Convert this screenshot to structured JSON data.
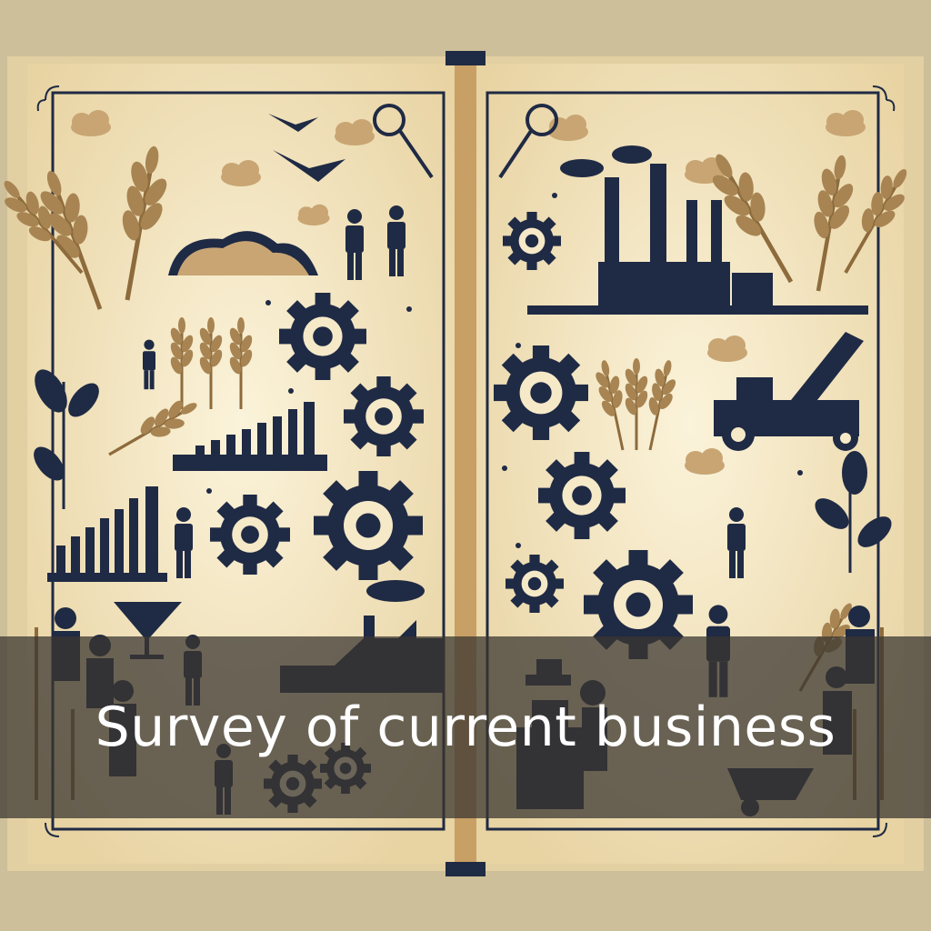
{
  "title": "Survey of current business",
  "colors": {
    "paper": "#f3e6c4",
    "ink": "#1f2a44",
    "wheat": "#a78452",
    "banner": "#3a3630",
    "text": "#ffffff"
  },
  "icons": [
    "wheat-icon",
    "gear-icon",
    "factory-icon",
    "tractor-icon",
    "person-icon",
    "bird-icon",
    "cloud-icon",
    "bar-chart-icon",
    "magnifier-icon",
    "cocktail-glass-icon",
    "leaf-plant-icon",
    "wheelbarrow-icon",
    "hat-person-icon"
  ]
}
